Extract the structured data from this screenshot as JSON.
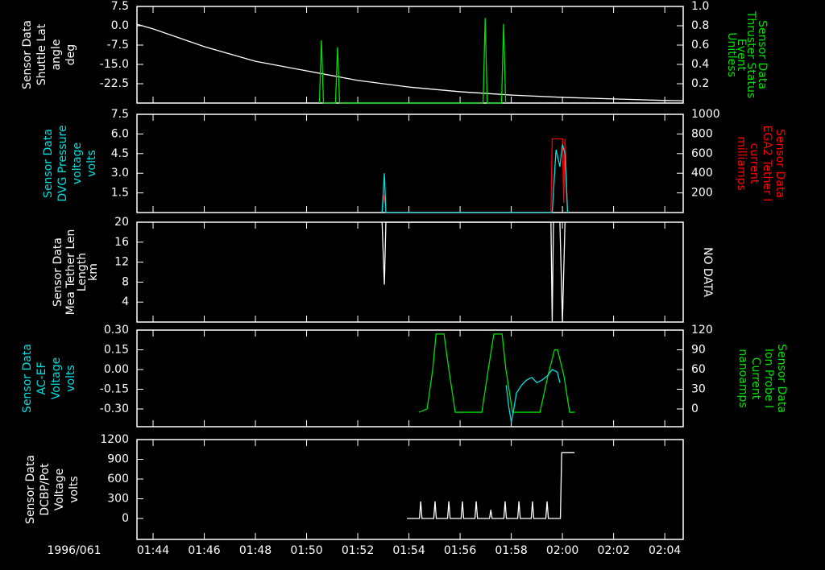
{
  "chart_data": [
    {
      "type": "line",
      "xlim": [
        43.37,
        64.72
      ],
      "ylim": [
        -30,
        7.5
      ],
      "yticks": [
        7.5,
        {
          "value": 0,
          "label": "0.0"
        },
        -7.5,
        {
          "value": -15,
          "label": "-15.0"
        },
        -22.5
      ],
      "y2lim": [
        0,
        1
      ],
      "y2ticks": [
        {
          "value": 1,
          "label": "1.0"
        },
        0.8,
        0.6,
        0.4,
        0.2
      ],
      "ylabel": [
        "Sensor Data",
        "Shuttle Lat",
        "angle",
        "deg"
      ],
      "ylabel_color": "#ffffff",
      "y2label": [
        "Sensor Data",
        "Thruster Status",
        "Event",
        "Unitless"
      ],
      "y2label_color": "#00e000",
      "series": [
        {
          "color": "#ffffff",
          "x": [
            43.37,
            44,
            46,
            48,
            50,
            52,
            54,
            56,
            58,
            60,
            62,
            64,
            64.72
          ],
          "values": [
            0.6,
            -1.2,
            -8.1,
            -13.8,
            -17.5,
            -21.2,
            -23.8,
            -25.6,
            -26.9,
            -27.8,
            -28.4,
            -29.0,
            -29.1
          ]
        },
        {
          "color": "#00e000",
          "axis": "y2",
          "x": [
            50.5,
            50.58,
            50.66,
            51.13,
            51.21,
            51.29,
            56.9,
            56.98,
            57.06,
            57.62,
            57.7,
            57.78
          ],
          "values": [
            0,
            0.65,
            0,
            0,
            0.58,
            0,
            0,
            0.88,
            0,
            0,
            0.82,
            0
          ]
        }
      ]
    },
    {
      "type": "line",
      "xlim": [
        43.37,
        64.72
      ],
      "ylim": [
        0,
        7.5
      ],
      "yticks": [
        7.5,
        {
          "value": 6,
          "label": "6.0"
        },
        4.5,
        {
          "value": 3,
          "label": "3.0"
        },
        1.5
      ],
      "y2lim": [
        0,
        1000
      ],
      "y2ticks": [
        1000,
        800,
        600,
        400,
        200
      ],
      "ylabel": [
        "Sensor Data",
        "DVG Pressure",
        "voltage",
        "volts"
      ],
      "ylabel_color": "#00e0e0",
      "y2label": [
        "Sensor Data",
        "EGA2 Tether I",
        "current",
        "milliamps"
      ],
      "y2label_color": "#ff0000",
      "series": [
        {
          "color": "#ff0000",
          "axis": "y2",
          "x": [
            52.95,
            53.04,
            53.1,
            59.55,
            59.6,
            60.0,
            60.05,
            60.1,
            60.2
          ],
          "values": [
            0,
            180,
            0,
            0,
            750,
            750,
            100,
            750,
            0
          ]
        },
        {
          "color": "#00e0e0",
          "x": [
            52.95,
            53.04,
            53.1,
            59.6,
            59.75,
            59.9,
            60.0,
            60.1,
            60.2
          ],
          "values": [
            0,
            3.0,
            0,
            0,
            4.8,
            3.5,
            5.2,
            4.5,
            0
          ]
        }
      ]
    },
    {
      "type": "line",
      "xlim": [
        43.37,
        64.72
      ],
      "ylim": [
        0,
        20
      ],
      "yticks": [
        20,
        16,
        12,
        8,
        4
      ],
      "ylabel": [
        "Sensor Data",
        "Mea Tether Len",
        "Length",
        "km"
      ],
      "ylabel_color": "#ffffff",
      "annotation": "NO DATA",
      "series": [
        {
          "color": "#ffffff",
          "x": [
            52.95,
            53.04,
            53.1,
            59.55,
            59.6,
            59.65,
            59.9,
            60.0,
            60.1
          ],
          "values": [
            20,
            7.5,
            20,
            20,
            0,
            20,
            20,
            0,
            20
          ]
        }
      ]
    },
    {
      "type": "line",
      "xlim": [
        43.37,
        64.72
      ],
      "ylim": [
        -0.435,
        0.3
      ],
      "yticks": [
        {
          "value": 0.3,
          "label": "0.30"
        },
        0.15,
        {
          "value": 0,
          "label": "0.00"
        },
        -0.15,
        {
          "value": -0.3,
          "label": "-0.30"
        }
      ],
      "y2lim": [
        -27,
        120
      ],
      "y2ticks": [
        120,
        90,
        60,
        30,
        0
      ],
      "ylabel": [
        "Sensor Data",
        "AC-EF",
        "Voltage",
        "volts"
      ],
      "ylabel_color": "#00e0e0",
      "y2label": [
        "Sensor Data",
        "Ion Probe I",
        "Current",
        "nanoamps"
      ],
      "y2label_color": "#00e000",
      "series": [
        {
          "color": "#00e000",
          "axis": "y2",
          "x": [
            54.39,
            54.71,
            54.93,
            55.06,
            55.37,
            55.56,
            55.81,
            56.85,
            57.1,
            57.32,
            57.64,
            57.79,
            58.05,
            59.12,
            59.43,
            59.69,
            59.81,
            60.06,
            60.28,
            60.47
          ],
          "values": [
            -5,
            0,
            60,
            114,
            114,
            60,
            -5,
            -5,
            60,
            114,
            114,
            60,
            -5,
            -5,
            50,
            90,
            90,
            50,
            -5,
            -5
          ]
        },
        {
          "color": "#00e0e0",
          "x": [
            57.8,
            57.9,
            58.0,
            58.1,
            58.2,
            58.4,
            58.6,
            58.8,
            59.0,
            59.2,
            59.4,
            59.6,
            59.8,
            59.9
          ],
          "values": [
            -0.12,
            -0.28,
            -0.4,
            -0.3,
            -0.18,
            -0.12,
            -0.08,
            -0.06,
            -0.1,
            -0.08,
            -0.05,
            0.0,
            -0.02,
            -0.1
          ]
        }
      ]
    },
    {
      "type": "line",
      "xlim": [
        43.37,
        64.72
      ],
      "ylim": [
        -318,
        1200
      ],
      "yticks": [
        1200,
        900,
        600,
        300,
        0
      ],
      "ylabel": [
        "Sensor Data",
        "DCBP/Pot",
        "Voltage",
        "volts"
      ],
      "ylabel_color": "#ffffff",
      "xlabel": "1996/061",
      "xticks": [
        {
          "value": 44,
          "label": "01:44"
        },
        {
          "value": 46,
          "label": "01:46"
        },
        {
          "value": 48,
          "label": "01:48"
        },
        {
          "value": 50,
          "label": "01:50"
        },
        {
          "value": 52,
          "label": "01:52"
        },
        {
          "value": 54,
          "label": "01:54"
        },
        {
          "value": 56,
          "label": "01:56"
        },
        {
          "value": 58,
          "label": "01:58"
        },
        {
          "value": 60,
          "label": "02:00"
        },
        {
          "value": 62,
          "label": "02:02"
        },
        {
          "value": 64,
          "label": "02:04"
        }
      ],
      "series": [
        {
          "color": "#ffffff",
          "x": [
            53.92,
            54.41,
            54.46,
            54.51,
            54.97,
            55.02,
            55.07,
            55.51,
            55.56,
            55.61,
            56.04,
            56.09,
            56.14,
            56.58,
            56.63,
            56.68,
            57.15,
            57.2,
            57.25,
            57.71,
            57.76,
            57.81,
            58.25,
            58.3,
            58.35,
            58.78,
            58.83,
            58.88,
            59.35,
            59.4,
            59.45,
            59.92,
            59.97,
            60.47
          ],
          "values": [
            0,
            0,
            260,
            0,
            0,
            260,
            0,
            0,
            260,
            0,
            0,
            260,
            0,
            0,
            260,
            0,
            0,
            130,
            0,
            0,
            260,
            0,
            0,
            260,
            0,
            0,
            260,
            0,
            0,
            260,
            0,
            0,
            1000,
            1000
          ]
        }
      ]
    }
  ]
}
